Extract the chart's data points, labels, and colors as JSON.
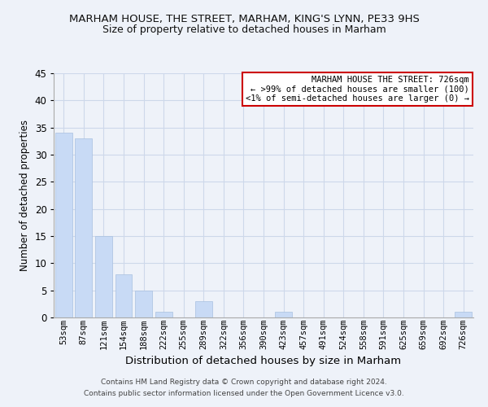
{
  "title": "MARHAM HOUSE, THE STREET, MARHAM, KING'S LYNN, PE33 9HS",
  "subtitle": "Size of property relative to detached houses in Marham",
  "xlabel": "Distribution of detached houses by size in Marham",
  "ylabel": "Number of detached properties",
  "categories": [
    "53sqm",
    "87sqm",
    "121sqm",
    "154sqm",
    "188sqm",
    "222sqm",
    "255sqm",
    "289sqm",
    "322sqm",
    "356sqm",
    "390sqm",
    "423sqm",
    "457sqm",
    "491sqm",
    "524sqm",
    "558sqm",
    "591sqm",
    "625sqm",
    "659sqm",
    "692sqm",
    "726sqm"
  ],
  "values": [
    34,
    33,
    15,
    8,
    5,
    1,
    0,
    3,
    0,
    0,
    0,
    1,
    0,
    0,
    0,
    0,
    0,
    0,
    0,
    0,
    1
  ],
  "bar_color": "#c8daf5",
  "bar_edgecolor": "#a8c0e0",
  "grid_color": "#cdd8ea",
  "ylim": [
    0,
    45
  ],
  "yticks": [
    0,
    5,
    10,
    15,
    20,
    25,
    30,
    35,
    40,
    45
  ],
  "legend_title": "MARHAM HOUSE THE STREET: 726sqm",
  "legend_line1": "← >99% of detached houses are smaller (100)",
  "legend_line2": "<1% of semi-detached houses are larger (0) →",
  "legend_edgecolor": "#cc0000",
  "footer_line1": "Contains HM Land Registry data © Crown copyright and database right 2024.",
  "footer_line2": "Contains public sector information licensed under the Open Government Licence v3.0.",
  "background_color": "#eef2f9",
  "title_fontsize": 9.5,
  "subtitle_fontsize": 9.0,
  "xlabel_fontsize": 9.5,
  "ylabel_fontsize": 8.5,
  "tick_fontsize": 8.5,
  "xtick_fontsize": 7.5,
  "legend_fontsize": 7.5,
  "footer_fontsize": 6.5
}
